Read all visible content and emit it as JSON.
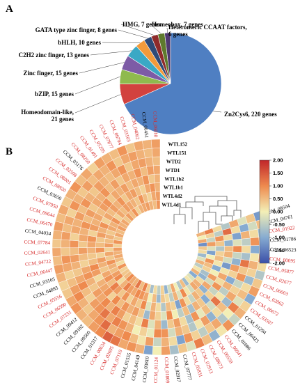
{
  "panels": {
    "a": "A",
    "b": "B"
  },
  "chart_data": [
    {
      "type": "pie",
      "categories": [
        "Zn2Cys6, 220 genes",
        "Homeodomain-like,\n21 genes",
        "bZIP, 15 genes",
        "Zinc finger, 15 genes",
        "C2H2 zinc finger, 13 genes",
        "bHLH, 10 genes",
        "GATA type zinc finger, 8 genes",
        "HMG, 7 genes",
        "Homeobox, 7 genes",
        "Heteromeric CCAAT factors,\n6 genes"
      ],
      "values": [
        220,
        21,
        15,
        15,
        13,
        10,
        8,
        7,
        7,
        6
      ],
      "colors": [
        "#4f7fc2",
        "#d2423f",
        "#8fba4e",
        "#7d5ba6",
        "#3aa8c5",
        "#f29a3b",
        "#2f4a77",
        "#8f2b2b",
        "#5e7a2c",
        "#4e3870"
      ]
    },
    {
      "type": "heatmap",
      "rows": [
        "WTL152",
        "WTL151",
        "WTD2",
        "WTD1",
        "WTL1b2",
        "WTL1b1",
        "WTL4d2",
        "WTL4d1"
      ],
      "columns": [
        "CCM_09504",
        "CCM_04761",
        "CCM_01922",
        "CCM_01786",
        "CCM_06523",
        "CCM_00095",
        "CCM_05877",
        "CCM_02677",
        "CCM_06003",
        "CCM_02062",
        "CCM_00672",
        "CCM_03507",
        "CCM_01294",
        "CCM_06423",
        "CCM_01086",
        "CCM_06941",
        "CCM_06550",
        "CCM_08673",
        "CCM_02913",
        "CCM_05831",
        "CCM_07777",
        "CCM_02917",
        "CCM_01809",
        "CCM_01124",
        "CCM_03810",
        "CCM_04149",
        "CCM_01555",
        "CCM_07110",
        "CCM_02695",
        "CCM_00634",
        "CCM_01317",
        "CCM_09560",
        "CCM_09182",
        "CCM_09412",
        "CCM_07331",
        "CCM_06590",
        "CCM_05556",
        "CCM_04893",
        "CCM_03165",
        "CCM_06447",
        "CCM_04722",
        "CCM_02641",
        "CCM_07784",
        "CCM_04034",
        "CCM_06470",
        "CCM_09644",
        "CCM_07950",
        "CCM_03650",
        "CCM_08920",
        "CCM_08001",
        "CCM_02508",
        "CCM_05176",
        "CCM_08250",
        "CCM_01491",
        "CCM_05295",
        "CCM_07877",
        "CCM_06794",
        "CCM_03103",
        "CCM_04062",
        "CCM_00451",
        "CCM_06010"
      ],
      "column_label_colors": [
        "#000000",
        "#000000",
        "#d72a2a",
        "#000000",
        "#000000",
        "#d72a2a",
        "#d72a2a",
        "#d72a2a",
        "#d72a2a",
        "#d72a2a",
        "#d72a2a",
        "#d72a2a",
        "#000000",
        "#000000",
        "#000000",
        "#d72a2a",
        "#d72a2a",
        "#d72a2a",
        "#d72a2a",
        "#d72a2a",
        "#000000",
        "#000000",
        "#d72a2a",
        "#d72a2a",
        "#000000",
        "#000000",
        "#000000",
        "#d72a2a",
        "#d72a2a",
        "#d72a2a",
        "#000000",
        "#000000",
        "#000000",
        "#000000",
        "#d72a2a",
        "#d72a2a",
        "#d72a2a",
        "#000000",
        "#000000",
        "#d72a2a",
        "#d72a2a",
        "#d72a2a",
        "#d72a2a",
        "#000000",
        "#d72a2a",
        "#d72a2a",
        "#d72a2a",
        "#000000",
        "#d72a2a",
        "#d72a2a",
        "#d72a2a",
        "#000000",
        "#d72a2a",
        "#d72a2a",
        "#d72a2a",
        "#d72a2a",
        "#d72a2a",
        "#d72a2a",
        "#d72a2a",
        "#000000",
        "#d72a2a"
      ],
      "values": [
        [
          -1.2,
          0.4,
          -0.2,
          0.7,
          -0.6,
          0.2,
          1.1,
          0.6
        ],
        [
          0.5,
          -0.3,
          -1.0,
          0.2,
          1.3,
          -0.5,
          0.3,
          0.0
        ],
        [
          -0.8,
          0.2,
          0.6,
          -1.1,
          0.2,
          0.9,
          -0.4,
          0.7
        ],
        [
          0.7,
          0.9,
          -0.5,
          -0.2,
          -0.9,
          0.4,
          0.8,
          -1.3
        ],
        [
          -0.3,
          -1.0,
          0.2,
          1.0,
          0.5,
          -0.6,
          -0.2,
          0.4
        ],
        [
          1.0,
          0.1,
          -0.7,
          -0.4,
          0.6,
          0.3,
          -1.1,
          0.2
        ],
        [
          0.2,
          0.6,
          1.2,
          -0.9,
          -0.3,
          0.5,
          0.0,
          -0.8
        ],
        [
          -0.6,
          0.3,
          0.4,
          0.8,
          -1.2,
          0.1,
          0.9,
          -0.2
        ],
        [
          0.4,
          -0.8,
          0.9,
          0.3,
          0.1,
          -1.0,
          0.5,
          0.6
        ],
        [
          0.8,
          0.2,
          -0.4,
          -1.0,
          0.7,
          0.0,
          0.3,
          -0.5
        ],
        [
          -1.0,
          0.5,
          0.3,
          0.6,
          0.2,
          0.8,
          -0.7,
          0.1
        ],
        [
          0.3,
          -0.2,
          0.7,
          -0.5,
          0.9,
          -0.3,
          -0.9,
          0.6
        ],
        [
          0.6,
          1.1,
          -0.8,
          0.1,
          -0.4,
          0.7,
          0.2,
          -1.0
        ],
        [
          -0.4,
          0.0,
          0.5,
          1.2,
          0.3,
          -0.9,
          0.6,
          -0.2
        ],
        [
          0.9,
          -0.6,
          0.2,
          -0.3,
          -1.0,
          0.4,
          0.7,
          0.1
        ],
        [
          0.1,
          0.7,
          -0.9,
          0.5,
          0.4,
          0.6,
          -0.3,
          -0.8
        ],
        [
          -0.9,
          0.4,
          0.8,
          -0.1,
          0.6,
          -0.4,
          0.1,
          0.5
        ],
        [
          0.5,
          -0.5,
          0.1,
          0.9,
          -0.7,
          0.2,
          1.0,
          -0.6
        ],
        [
          1.1,
          0.3,
          -0.6,
          -0.7,
          0.5,
          0.9,
          -0.2,
          0.0
        ],
        [
          -0.2,
          0.9,
          0.4,
          0.2,
          -0.5,
          -1.1,
          0.6,
          0.7
        ],
        [
          0.4,
          -1.1,
          0.6,
          0.8,
          0.0,
          0.3,
          -0.5,
          -0.3
        ],
        [
          -0.7,
          0.2,
          -0.3,
          0.4,
          1.0,
          0.5,
          0.2,
          -0.9
        ],
        [
          0.8,
          0.6,
          0.9,
          -0.8,
          -0.2,
          -0.6,
          0.4,
          0.3
        ],
        [
          0.0,
          -0.4,
          1.0,
          0.6,
          0.3,
          0.2,
          -0.8,
          -0.5
        ],
        [
          -1.1,
          0.8,
          -0.1,
          -0.2,
          0.7,
          0.6,
          0.5,
          0.2
        ],
        [
          0.6,
          0.1,
          0.3,
          1.1,
          -0.8,
          -0.2,
          0.0,
          -0.7
        ],
        [
          0.9,
          0.5,
          0.0,
          0.2,
          0.4,
          1.0,
          0.7,
          0.3
        ],
        [
          0.7,
          1.0,
          0.6,
          0.5,
          0.8,
          0.4,
          0.9,
          1.1
        ],
        [
          1.2,
          0.8,
          0.9,
          0.3,
          0.6,
          0.7,
          1.0,
          0.5
        ],
        [
          1.4,
          0.6,
          1.1,
          0.8,
          0.9,
          0.3,
          0.7,
          1.2
        ],
        [
          1.0,
          1.3,
          0.7,
          1.1,
          0.5,
          0.9,
          0.8,
          0.6
        ],
        [
          0.8,
          0.9,
          1.2,
          0.6,
          1.0,
          0.4,
          1.1,
          0.7
        ],
        [
          0.5,
          0.7,
          0.9,
          1.0,
          0.3,
          0.8,
          0.6,
          1.0
        ],
        [
          0.6,
          0.4,
          0.8,
          0.7,
          0.9,
          1.1,
          0.2,
          0.5
        ],
        [
          0.9,
          0.6,
          0.3,
          0.8,
          0.7,
          0.5,
          1.0,
          0.4
        ],
        [
          0.7,
          1.0,
          0.5,
          0.4,
          0.6,
          0.9,
          0.8,
          0.3
        ],
        [
          0.4,
          0.8,
          1.0,
          0.6,
          0.2,
          0.7,
          0.5,
          0.9
        ],
        [
          0.3,
          0.5,
          0.7,
          0.9,
          0.8,
          0.4,
          0.6,
          0.2
        ],
        [
          0.6,
          0.3,
          0.4,
          0.7,
          1.0,
          0.6,
          0.9,
          0.5
        ],
        [
          0.8,
          0.7,
          0.6,
          0.3,
          0.5,
          0.8,
          0.4,
          0.7
        ],
        [
          0.5,
          0.9,
          0.8,
          0.5,
          0.4,
          0.3,
          0.7,
          0.6
        ],
        [
          0.7,
          0.4,
          0.5,
          0.8,
          0.6,
          0.9,
          0.3,
          0.8
        ],
        [
          0.4,
          0.6,
          0.9,
          0.4,
          0.7,
          0.5,
          0.8,
          0.3
        ],
        [
          0.6,
          0.8,
          0.3,
          0.7,
          0.9,
          0.4,
          0.5,
          0.9
        ],
        [
          0.8,
          0.5,
          0.7,
          0.6,
          0.3,
          0.8,
          0.6,
          0.4
        ],
        [
          0.5,
          0.7,
          0.6,
          0.9,
          0.8,
          0.6,
          0.4,
          0.7
        ],
        [
          0.7,
          0.3,
          0.8,
          0.5,
          0.6,
          0.9,
          0.7,
          0.5
        ],
        [
          0.4,
          0.9,
          0.5,
          0.8,
          0.7,
          0.3,
          0.6,
          0.8
        ],
        [
          0.6,
          0.6,
          0.9,
          0.4,
          0.5,
          0.7,
          0.9,
          0.6
        ],
        [
          0.9,
          0.4,
          0.6,
          0.7,
          0.8,
          0.5,
          0.3,
          0.7
        ],
        [
          0.5,
          0.8,
          0.4,
          0.6,
          0.9,
          0.8,
          0.7,
          0.4
        ],
        [
          0.7,
          0.5,
          0.8,
          0.9,
          0.4,
          0.6,
          0.5,
          0.8
        ],
        [
          0.3,
          0.7,
          0.6,
          0.5,
          0.7,
          0.9,
          0.8,
          0.5
        ],
        [
          0.8,
          0.6,
          0.5,
          0.8,
          0.6,
          0.4,
          0.7,
          0.9
        ],
        [
          0.6,
          0.9,
          0.7,
          0.4,
          0.8,
          0.7,
          0.6,
          0.3
        ],
        [
          0.5,
          0.4,
          0.9,
          0.7,
          0.5,
          0.8,
          0.4,
          0.6
        ],
        [
          0.9,
          0.7,
          0.4,
          0.6,
          0.7,
          0.5,
          0.9,
          0.7
        ],
        [
          0.4,
          0.8,
          0.7,
          0.9,
          0.6,
          0.3,
          0.5,
          0.8
        ],
        [
          0.7,
          0.6,
          0.8,
          0.5,
          0.9,
          0.7,
          0.3,
          0.6
        ],
        [
          0.6,
          0.5,
          0.6,
          0.8,
          0.4,
          0.9,
          0.7,
          0.5
        ],
        [
          0.8,
          0.7,
          0.5,
          0.7,
          0.6,
          0.6,
          0.8,
          0.9
        ]
      ],
      "colorbar": {
        "ticks": [
          "2.00",
          "1.50",
          "1.00",
          "0.50",
          "0.00",
          "-0.50",
          "-1.00",
          "-1.50",
          "-2.00"
        ],
        "range": [
          -2,
          2
        ],
        "colors": [
          "#3a4fa8",
          "#f3efb6",
          "#c1262a"
        ]
      }
    }
  ]
}
